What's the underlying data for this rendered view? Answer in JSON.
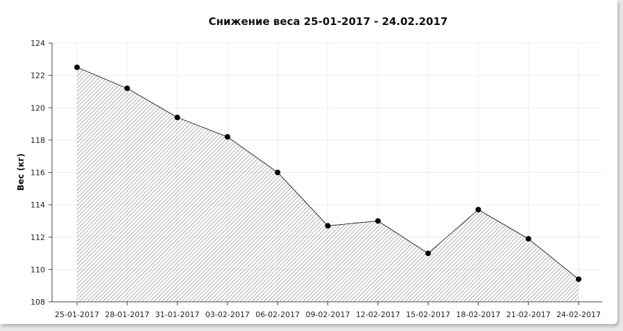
{
  "chart_data": {
    "type": "area",
    "title": "Снижение веса 25-01-2017 - 24.02.2017",
    "xlabel": "",
    "ylabel": "Вес (кг)",
    "categories": [
      "25-01-2017",
      "28-01-2017",
      "31-01-2017",
      "03-02-2017",
      "06-02-2017",
      "09-02-2017",
      "12-02-2017",
      "15-02-2017",
      "18-02-2017",
      "21-02-2017",
      "24-02-2017"
    ],
    "values": [
      122.5,
      121.2,
      119.4,
      118.2,
      116.0,
      112.7,
      113.0,
      111.0,
      113.7,
      111.9,
      109.4
    ],
    "ylim": [
      108,
      124
    ],
    "yticks": [
      108,
      110,
      112,
      114,
      116,
      118,
      120,
      122,
      124
    ],
    "grid": true,
    "legend": "none",
    "colors": {
      "line": "#000000",
      "fill_hatch": "#666666",
      "grid": "#eeeeee",
      "axis": "#444444"
    }
  }
}
